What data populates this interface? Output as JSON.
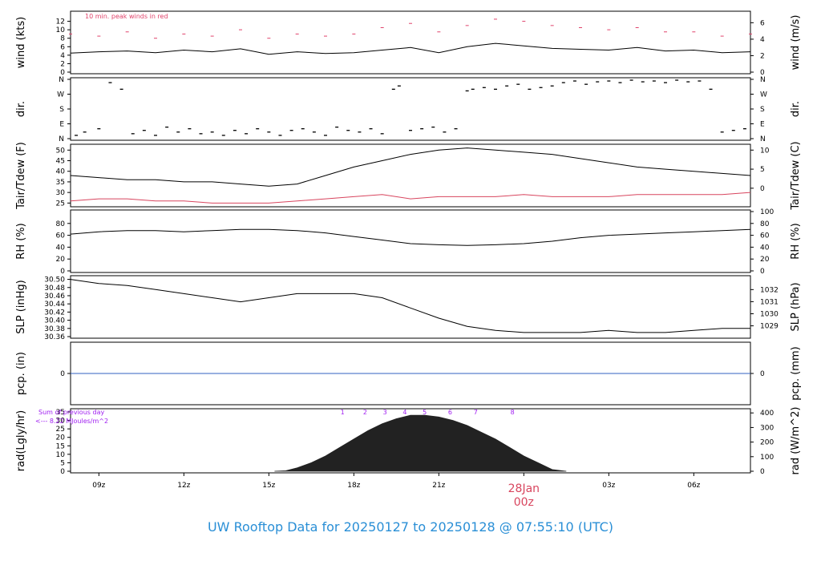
{
  "footer_title": "UW Rooftop Data for 20250127  to  20250128 @ 07:55:10  (UTC)",
  "colors": {
    "line": "#000000",
    "peak": "#e0436b",
    "dew": "#d8455e",
    "precip": "#3060c0",
    "annot": "#a020f0",
    "date": "#d8455e",
    "footer": "#2a8fd6"
  },
  "x_axis": {
    "ticks": [
      {
        "hour": 9,
        "label": "09z"
      },
      {
        "hour": 12,
        "label": "12z"
      },
      {
        "hour": 15,
        "label": "15z"
      },
      {
        "hour": 18,
        "label": "18z"
      },
      {
        "hour": 21,
        "label": "21z"
      },
      {
        "hour": 27,
        "label": "03z"
      },
      {
        "hour": 30,
        "label": "06z"
      }
    ],
    "date_marker": {
      "hour": 24,
      "date": "28Jan",
      "time": "00z"
    },
    "range_hours": [
      8,
      32
    ]
  },
  "chart_data": [
    {
      "panel": "wind",
      "type": "line",
      "ylabel": "wind (kts)",
      "ylabel_right": "wind (m/s)",
      "ylim": [
        0,
        14
      ],
      "ticks_left": [
        0,
        2,
        4,
        6,
        8,
        10,
        12
      ],
      "ticks_right": [
        0,
        2,
        4,
        6
      ],
      "annotation": "10 min. peak winds in red",
      "series": [
        {
          "name": "wind",
          "x": [
            8,
            9,
            10,
            11,
            12,
            13,
            14,
            15,
            16,
            17,
            18,
            19,
            20,
            21,
            22,
            23,
            24,
            25,
            26,
            27,
            28,
            29,
            30,
            31,
            32
          ],
          "y": [
            4.5,
            4.8,
            5.0,
            4.6,
            5.2,
            4.8,
            5.5,
            4.2,
            4.8,
            4.4,
            4.6,
            5.2,
            5.8,
            4.6,
            6.0,
            6.8,
            6.2,
            5.6,
            5.4,
            5.2,
            5.8,
            5.0,
            5.2,
            4.6,
            4.8
          ]
        },
        {
          "name": "10 min. peak winds",
          "x": [
            8,
            9,
            10,
            11,
            12,
            13,
            14,
            15,
            16,
            17,
            18,
            19,
            20,
            21,
            22,
            23,
            24,
            25,
            26,
            27,
            28,
            29,
            30,
            31,
            32
          ],
          "y": [
            9.0,
            8.5,
            9.5,
            8.0,
            9.0,
            8.5,
            10.0,
            8.0,
            9.0,
            8.5,
            9.0,
            10.5,
            11.5,
            9.5,
            11.0,
            12.5,
            12.0,
            11.0,
            10.5,
            10.0,
            10.5,
            9.5,
            9.5,
            8.5,
            9.0
          ]
        }
      ]
    },
    {
      "panel": "dir",
      "type": "scatter",
      "ylabel": "dir.",
      "ylabel_right": "dir.",
      "ticks": [
        "N",
        "E",
        "S",
        "W",
        "N"
      ],
      "points": [
        [
          8.2,
          20
        ],
        [
          8.5,
          40
        ],
        [
          9.0,
          60
        ],
        [
          9.4,
          340
        ],
        [
          9.8,
          300
        ],
        [
          10.2,
          30
        ],
        [
          10.6,
          50
        ],
        [
          11.0,
          20
        ],
        [
          11.4,
          70
        ],
        [
          11.8,
          40
        ],
        [
          12.2,
          60
        ],
        [
          12.6,
          30
        ],
        [
          13.0,
          40
        ],
        [
          13.4,
          20
        ],
        [
          13.8,
          50
        ],
        [
          14.2,
          30
        ],
        [
          14.6,
          60
        ],
        [
          15.0,
          40
        ],
        [
          15.4,
          20
        ],
        [
          15.8,
          50
        ],
        [
          16.2,
          60
        ],
        [
          16.6,
          40
        ],
        [
          17.0,
          20
        ],
        [
          17.4,
          70
        ],
        [
          17.8,
          50
        ],
        [
          18.2,
          40
        ],
        [
          18.6,
          60
        ],
        [
          19.0,
          30
        ],
        [
          19.4,
          300
        ],
        [
          19.6,
          320
        ],
        [
          20.0,
          50
        ],
        [
          20.4,
          60
        ],
        [
          20.8,
          70
        ],
        [
          21.2,
          40
        ],
        [
          21.6,
          60
        ],
        [
          22.0,
          290
        ],
        [
          22.2,
          300
        ],
        [
          22.6,
          310
        ],
        [
          23.0,
          300
        ],
        [
          23.4,
          320
        ],
        [
          23.8,
          330
        ],
        [
          24.2,
          300
        ],
        [
          24.6,
          310
        ],
        [
          25.0,
          320
        ],
        [
          25.4,
          340
        ],
        [
          25.8,
          350
        ],
        [
          26.2,
          330
        ],
        [
          26.6,
          345
        ],
        [
          27.0,
          350
        ],
        [
          27.4,
          340
        ],
        [
          27.8,
          355
        ],
        [
          28.2,
          345
        ],
        [
          28.6,
          350
        ],
        [
          29.0,
          340
        ],
        [
          29.4,
          355
        ],
        [
          29.8,
          345
        ],
        [
          30.2,
          350
        ],
        [
          30.6,
          300
        ],
        [
          31.0,
          40
        ],
        [
          31.4,
          50
        ],
        [
          31.8,
          60
        ]
      ]
    },
    {
      "panel": "temp",
      "type": "line",
      "ylabel": "Tair/Tdew (F)",
      "ylabel_right": "Tair/Tdew (C)",
      "ylim": [
        24,
        52
      ],
      "ticks_left": [
        25,
        30,
        35,
        40,
        45,
        50
      ],
      "ticks_right": [
        0,
        5,
        10
      ],
      "series": [
        {
          "name": "Tair",
          "x": [
            8,
            9,
            10,
            11,
            12,
            13,
            14,
            15,
            16,
            17,
            18,
            19,
            20,
            21,
            22,
            23,
            24,
            25,
            26,
            27,
            28,
            29,
            30,
            31,
            32
          ],
          "y": [
            38,
            37,
            36,
            36,
            35,
            35,
            34,
            33,
            34,
            38,
            42,
            45,
            48,
            50,
            51,
            50,
            49,
            48,
            46,
            44,
            42,
            41,
            40,
            39,
            38
          ]
        },
        {
          "name": "Tdew",
          "x": [
            8,
            9,
            10,
            11,
            12,
            13,
            14,
            15,
            16,
            17,
            18,
            19,
            20,
            21,
            22,
            23,
            24,
            25,
            26,
            27,
            28,
            29,
            30,
            31,
            32
          ],
          "y": [
            26,
            27,
            27,
            26,
            26,
            25,
            25,
            25,
            26,
            27,
            28,
            29,
            27,
            28,
            28,
            28,
            29,
            28,
            28,
            28,
            29,
            29,
            29,
            29,
            30
          ]
        }
      ]
    },
    {
      "panel": "rh",
      "type": "line",
      "ylabel": "RH (%)",
      "ylabel_right": "RH (%)",
      "ylim": [
        0,
        100
      ],
      "ticks_left": [
        0,
        20,
        40,
        60,
        80
      ],
      "ticks_right": [
        0,
        20,
        40,
        60,
        80,
        100
      ],
      "series": [
        {
          "name": "RH",
          "x": [
            8,
            9,
            10,
            11,
            12,
            13,
            14,
            15,
            16,
            17,
            18,
            19,
            20,
            21,
            22,
            23,
            24,
            25,
            26,
            27,
            28,
            29,
            30,
            31,
            32
          ],
          "y": [
            62,
            66,
            68,
            68,
            66,
            68,
            70,
            70,
            68,
            64,
            58,
            52,
            46,
            44,
            43,
            44,
            46,
            50,
            56,
            60,
            62,
            64,
            66,
            68,
            70
          ]
        }
      ]
    },
    {
      "panel": "slp",
      "type": "line",
      "ylabel": "SLP (inHg)",
      "ylabel_right": "SLP (hPa)",
      "ylim": [
        30.36,
        30.505
      ],
      "ticks_left": [
        30.36,
        30.38,
        30.4,
        30.42,
        30.44,
        30.46,
        30.48,
        30.5
      ],
      "ticks_right": [
        1029,
        1030,
        1031,
        1032
      ],
      "series": [
        {
          "name": "SLP",
          "x": [
            8,
            9,
            10,
            11,
            12,
            13,
            14,
            15,
            16,
            17,
            18,
            19,
            20,
            21,
            22,
            23,
            24,
            25,
            26,
            27,
            28,
            29,
            30,
            31,
            32
          ],
          "y": [
            30.5,
            30.49,
            30.485,
            30.475,
            30.465,
            30.455,
            30.445,
            30.455,
            30.465,
            30.465,
            30.465,
            30.455,
            30.43,
            30.405,
            30.385,
            30.375,
            30.37,
            30.37,
            30.37,
            30.375,
            30.37,
            30.37,
            30.375,
            30.38,
            30.38
          ]
        }
      ]
    },
    {
      "panel": "precip",
      "type": "line",
      "ylabel": "pcp. (in)",
      "ylabel_right": "pcp. (mm)",
      "ticks_left": [
        0
      ],
      "ticks_right": [
        0
      ],
      "series": [
        {
          "name": "pcp",
          "x": [
            8,
            32
          ],
          "y": [
            0,
            0
          ]
        }
      ]
    },
    {
      "panel": "rad",
      "type": "area",
      "ylabel": "rad(Lgly/hr)",
      "ylabel_right": "rad (W/m^2)",
      "ylim": [
        0,
        35
      ],
      "ticks_left": [
        0,
        5,
        10,
        15,
        20,
        25,
        30,
        35
      ],
      "ticks_right": [
        0,
        100,
        200,
        300,
        400
      ],
      "annotation_line1": "Sum of previous day",
      "annotation_line2": "<--- 8.22 MJoules/m^2",
      "hour_labels": [
        {
          "hour": 17.6,
          "label": "1"
        },
        {
          "hour": 18.4,
          "label": "2"
        },
        {
          "hour": 19.1,
          "label": "3"
        },
        {
          "hour": 19.8,
          "label": "4"
        },
        {
          "hour": 20.5,
          "label": "5"
        },
        {
          "hour": 21.4,
          "label": "6"
        },
        {
          "hour": 22.3,
          "label": "7"
        },
        {
          "hour": 23.6,
          "label": "8"
        }
      ],
      "series": [
        {
          "name": "rad",
          "x": [
            15.2,
            15.6,
            16.0,
            16.5,
            17.0,
            17.5,
            18.0,
            18.5,
            19.0,
            19.5,
            20.0,
            20.5,
            21.0,
            21.5,
            22.0,
            22.5,
            23.0,
            23.5,
            24.0,
            24.5,
            25.0,
            25.5
          ],
          "y": [
            0,
            0.3,
            2,
            5,
            9,
            14,
            19,
            24,
            28,
            31,
            33,
            33,
            32,
            30,
            27,
            23,
            19,
            14,
            9,
            5,
            1,
            0
          ]
        }
      ]
    }
  ]
}
